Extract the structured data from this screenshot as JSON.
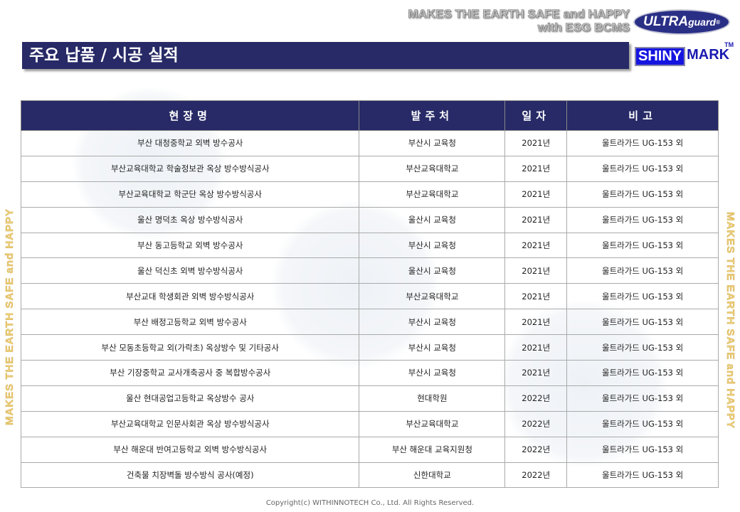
{
  "header": {
    "slogan_line1": "MAKES THE EARTH SAFE and HAPPY",
    "slogan_line2": "with ESG BCMS",
    "logo_ultra": "ULTRA",
    "logo_guard": "guard",
    "logo_reg": "®",
    "title": "주요 납품 / 시공 실적",
    "shiny": "SHINY",
    "mark": "MARK",
    "tm": "TM"
  },
  "side_text": "MAKES THE EARTH SAFE and HAPPY",
  "table": {
    "columns": [
      "현장명",
      "발주처",
      "일자",
      "비고"
    ],
    "rows": [
      [
        "부산 대청중학교 외벽 방수공사",
        "부산시 교육청",
        "2021년",
        "울트라가드 UG-153 외"
      ],
      [
        "부산교육대학교 학술정보관 옥상 방수방식공사",
        "부산교육대학교",
        "2021년",
        "울트라가드 UG-153 외"
      ],
      [
        "부산교육대학교 학군단 옥상 방수방식공사",
        "부산교육대학교",
        "2021년",
        "울트라가드 UG-153 외"
      ],
      [
        "울산 명덕초 옥상 방수방식공사",
        "울산시 교육청",
        "2021년",
        "울트라가드 UG-153 외"
      ],
      [
        "부산 동고등학교 외벽 방수공사",
        "부산시 교육청",
        "2021년",
        "울트라가드 UG-153 외"
      ],
      [
        "울산 덕신초 외벽 방수방식공사",
        "울산시 교육청",
        "2021년",
        "울트라가드 UG-153 외"
      ],
      [
        "부산교대 학생회관 외벽 방수방식공사",
        "부산교육대학교",
        "2021년",
        "울트라가드 UG-153 외"
      ],
      [
        "부산 배정고등학교 외벽 방수공사",
        "부산시 교육청",
        "2021년",
        "울트라가드 UG-153 외"
      ],
      [
        "부산 모동초등학교 외(가락초) 옥상방수 및 기타공사",
        "부산시 교육청",
        "2021년",
        "울트라가드 UG-153 외"
      ],
      [
        "부산 기장중학교 교사개축공사 중 복합방수공사",
        "부산시 교육청",
        "2021년",
        "울트라가드 UG-153 외"
      ],
      [
        "울산 현대공업고등학교 옥상방수 공사",
        "현대학원",
        "2022년",
        "울트라가드 UG-153 외"
      ],
      [
        "부산교육대학교 인문사회관 옥상 방수방식공사",
        "부산교육대학교",
        "2022년",
        "울트라가드 UG-153 외"
      ],
      [
        "부산 해운대 반여고등학교 외벽 방수방식공사",
        "부산 해운대 교육지원청",
        "2022년",
        "울트라가드 UG-153 외"
      ],
      [
        "건축물 치장벽돌 방수방식 공사(예정)",
        "신한대학교",
        "2022년",
        "울트라가드 UG-153 외"
      ]
    ]
  },
  "footer": "Copyright(c) WITHINNOTECH Co., Ltd.  All Rights Reserved."
}
